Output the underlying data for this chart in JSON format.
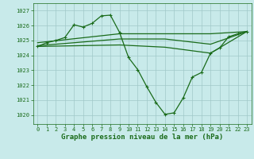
{
  "title": "Graphe pression niveau de la mer (hPa)",
  "bg_color": "#c8eaea",
  "grid_color": "#a0c8c8",
  "line_color": "#1a6b1a",
  "xlim": [
    -0.5,
    23.5
  ],
  "ylim": [
    1019.4,
    1027.5
  ],
  "yticks": [
    1020,
    1021,
    1022,
    1023,
    1024,
    1025,
    1026,
    1027
  ],
  "xticks": [
    0,
    1,
    2,
    3,
    4,
    5,
    6,
    7,
    8,
    9,
    10,
    11,
    12,
    13,
    14,
    15,
    16,
    17,
    18,
    19,
    20,
    21,
    22,
    23
  ],
  "main_x": [
    0,
    1,
    2,
    3,
    4,
    5,
    6,
    7,
    8,
    9,
    10,
    11,
    12,
    13,
    14,
    15,
    16,
    17,
    18,
    19,
    20,
    21,
    22,
    23
  ],
  "main_y": [
    1024.6,
    1024.85,
    1025.0,
    1025.2,
    1026.05,
    1025.9,
    1026.15,
    1026.65,
    1026.7,
    1025.55,
    1023.85,
    1023.05,
    1021.9,
    1020.85,
    1020.05,
    1020.15,
    1021.15,
    1022.55,
    1022.85,
    1024.15,
    1024.5,
    1025.25,
    1025.45,
    1025.6
  ],
  "line2_x": [
    0,
    9,
    14,
    19,
    23
  ],
  "line2_y": [
    1024.85,
    1025.45,
    1025.45,
    1025.45,
    1025.6
  ],
  "line3_x": [
    0,
    9,
    14,
    19,
    23
  ],
  "line3_y": [
    1024.65,
    1025.1,
    1025.1,
    1024.75,
    1025.6
  ],
  "line4_x": [
    0,
    9,
    14,
    19,
    23
  ],
  "line4_y": [
    1024.6,
    1024.7,
    1024.55,
    1024.15,
    1025.6
  ],
  "marker": "+",
  "markersize": 3.5,
  "linewidth": 0.9,
  "title_fontsize": 6.5,
  "tick_fontsize": 5.0
}
